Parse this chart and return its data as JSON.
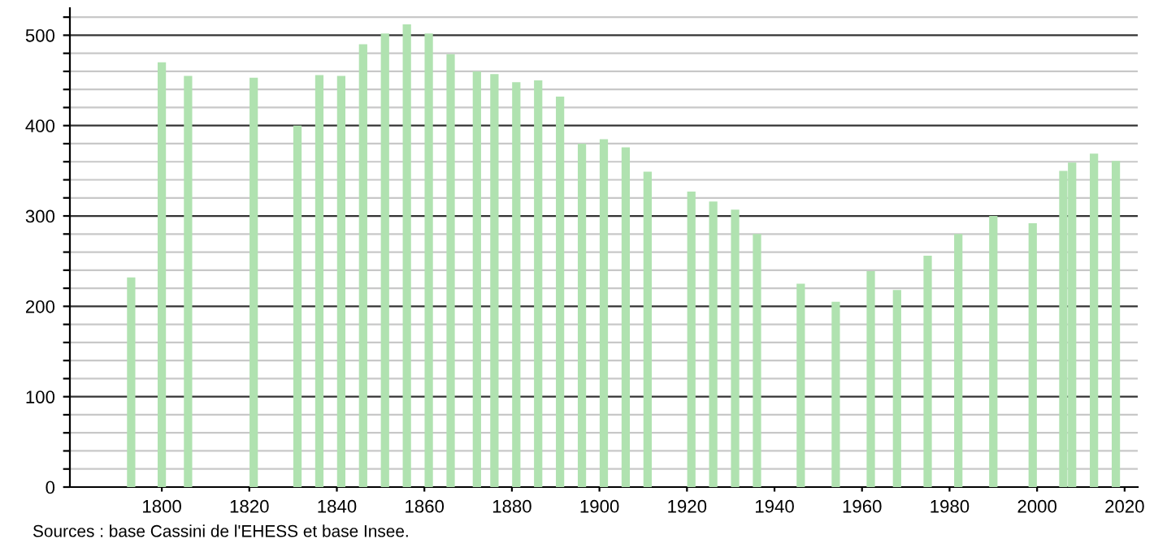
{
  "chart_data": {
    "type": "bar",
    "x": [
      1793,
      1800,
      1806,
      1821,
      1831,
      1836,
      1841,
      1846,
      1851,
      1856,
      1861,
      1866,
      1872,
      1876,
      1881,
      1886,
      1891,
      1896,
      1901,
      1906,
      1911,
      1921,
      1926,
      1931,
      1936,
      1946,
      1954,
      1962,
      1968,
      1975,
      1982,
      1990,
      1999,
      2006,
      2008,
      2013,
      2018
    ],
    "values": [
      232,
      470,
      455,
      453,
      400,
      456,
      455,
      490,
      502,
      512,
      502,
      479,
      460,
      457,
      448,
      450,
      432,
      380,
      385,
      376,
      349,
      327,
      316,
      307,
      280,
      225,
      205,
      239,
      218,
      256,
      280,
      300,
      292,
      350,
      359,
      369,
      361
    ],
    "color": "#b0e2b0",
    "xlim": [
      1779,
      2023
    ],
    "xticks": [
      1800,
      1820,
      1840,
      1860,
      1880,
      1900,
      1920,
      1940,
      1960,
      1980,
      2000,
      2020
    ],
    "ylim": [
      0,
      530
    ],
    "yticks": [
      0,
      {
        "value": 20,
        "label": null
      },
      {
        "value": 40,
        "label": null
      },
      {
        "value": 60,
        "label": null
      },
      {
        "value": 80,
        "label": null
      },
      100,
      {
        "value": 120,
        "label": null
      },
      {
        "value": 140,
        "label": null
      },
      {
        "value": 160,
        "label": null
      },
      {
        "value": 180,
        "label": null
      },
      200,
      {
        "value": 220,
        "label": null
      },
      {
        "value": 240,
        "label": null
      },
      {
        "value": 260,
        "label": null
      },
      {
        "value": 280,
        "label": null
      },
      300,
      {
        "value": 320,
        "label": null
      },
      {
        "value": 340,
        "label": null
      },
      {
        "value": 360,
        "label": null
      },
      {
        "value": 380,
        "label": null
      },
      400,
      {
        "value": 420,
        "label": null
      },
      {
        "value": 440,
        "label": null
      },
      {
        "value": 460,
        "label": null
      },
      {
        "value": 480,
        "label": null
      },
      500,
      {
        "value": 520,
        "label": null
      }
    ],
    "grid": "y",
    "annotations": [
      "Sources : base Cassini de l'EHESS et base Insee."
    ]
  }
}
